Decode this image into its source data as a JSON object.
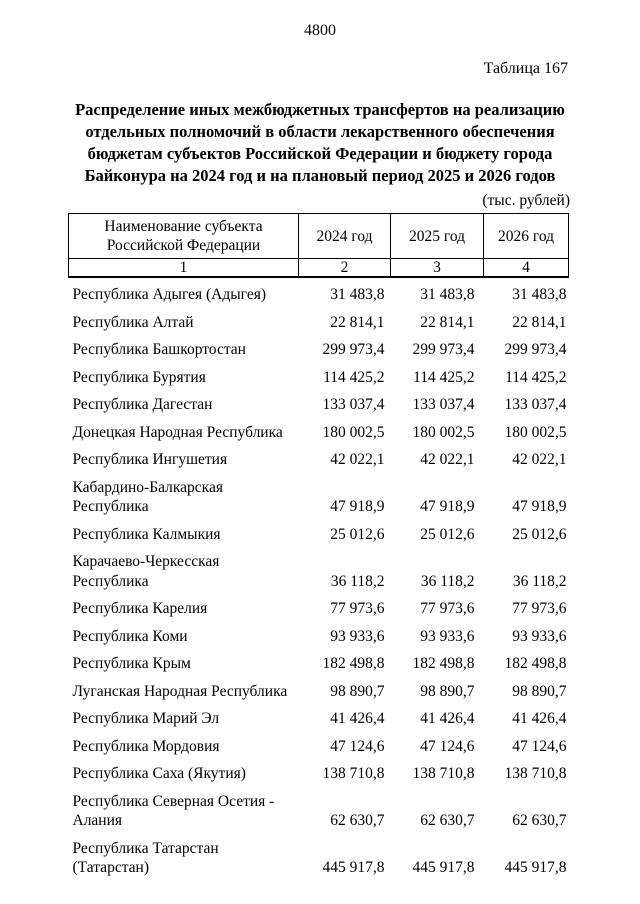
{
  "page": {
    "page_number": "4800",
    "table_caption": "Таблица 167",
    "title": "Распределение иных межбюджетных трансфертов на реализацию\nотдельных полномочий в области лекарственного обеспечения\nбюджетам субъектов Российской Федерации и бюджету города\nБайконура на 2024 год и на плановый период 2025 и 2026 годов",
    "units_note": "(тыс. рублей)"
  },
  "table": {
    "headers": {
      "name": "Наименование субъекта\nРоссийской Федерации",
      "y2024": "2024 год",
      "y2025": "2025 год",
      "y2026": "2026 год"
    },
    "column_numbers": [
      "1",
      "2",
      "3",
      "4"
    ],
    "rows": [
      {
        "name": "Республика Адыгея (Адыгея)",
        "y2024": "31 483,8",
        "y2025": "31 483,8",
        "y2026": "31 483,8"
      },
      {
        "name": "Республика Алтай",
        "y2024": "22 814,1",
        "y2025": "22 814,1",
        "y2026": "22 814,1"
      },
      {
        "name": "Республика Башкортостан",
        "y2024": "299 973,4",
        "y2025": "299 973,4",
        "y2026": "299 973,4"
      },
      {
        "name": "Республика Бурятия",
        "y2024": "114 425,2",
        "y2025": "114 425,2",
        "y2026": "114 425,2"
      },
      {
        "name": "Республика Дагестан",
        "y2024": "133 037,4",
        "y2025": "133 037,4",
        "y2026": "133 037,4"
      },
      {
        "name": "Донецкая Народная Республика",
        "y2024": "180 002,5",
        "y2025": "180 002,5",
        "y2026": "180 002,5"
      },
      {
        "name": "Республика Ингушетия",
        "y2024": "42 022,1",
        "y2025": "42 022,1",
        "y2026": "42 022,1"
      },
      {
        "name": "Кабардино-Балкарская\nРеспублика",
        "y2024": "47 918,9",
        "y2025": "47 918,9",
        "y2026": "47 918,9"
      },
      {
        "name": "Республика Калмыкия",
        "y2024": "25 012,6",
        "y2025": "25 012,6",
        "y2026": "25 012,6"
      },
      {
        "name": "Карачаево-Черкесская Республика",
        "y2024": "36 118,2",
        "y2025": "36 118,2",
        "y2026": "36 118,2"
      },
      {
        "name": "Республика Карелия",
        "y2024": "77 973,6",
        "y2025": "77 973,6",
        "y2026": "77 973,6"
      },
      {
        "name": "Республика Коми",
        "y2024": "93 933,6",
        "y2025": "93 933,6",
        "y2026": "93 933,6"
      },
      {
        "name": "Республика Крым",
        "y2024": "182 498,8",
        "y2025": "182 498,8",
        "y2026": "182 498,8"
      },
      {
        "name": "Луганская Народная Республика",
        "y2024": "98 890,7",
        "y2025": "98 890,7",
        "y2026": "98 890,7"
      },
      {
        "name": "Республика Марий Эл",
        "y2024": "41 426,4",
        "y2025": "41 426,4",
        "y2026": "41 426,4"
      },
      {
        "name": "Республика Мордовия",
        "y2024": "47 124,6",
        "y2025": "47 124,6",
        "y2026": "47 124,6"
      },
      {
        "name": "Республика Саха (Якутия)",
        "y2024": "138 710,8",
        "y2025": "138 710,8",
        "y2026": "138 710,8"
      },
      {
        "name": "Республика Северная Осетия -\nАлания",
        "y2024": "62 630,7",
        "y2025": "62 630,7",
        "y2026": "62 630,7"
      },
      {
        "name": "Республика Татарстан (Татарстан)",
        "y2024": "445 917,8",
        "y2025": "445 917,8",
        "y2026": "445 917,8"
      }
    ]
  }
}
